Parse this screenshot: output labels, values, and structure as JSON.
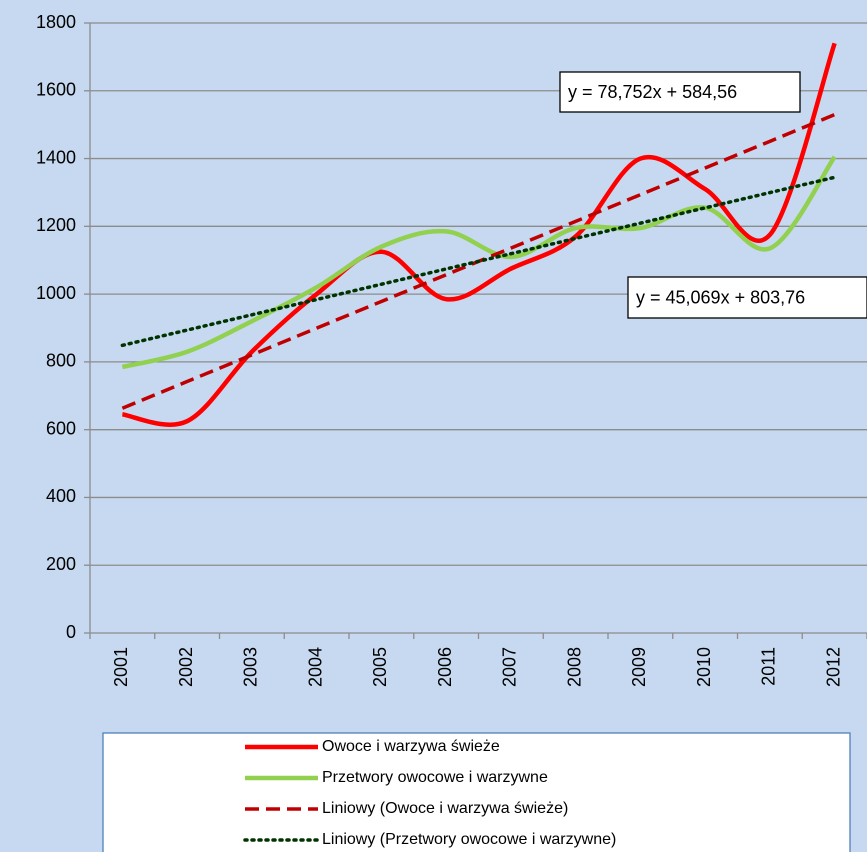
{
  "chart_data": {
    "type": "line",
    "categories": [
      "2001",
      "2002",
      "2003",
      "2004",
      "2005",
      "2006",
      "2007",
      "2008",
      "2009",
      "2010",
      "2011",
      "2012"
    ],
    "series": [
      {
        "name": "Owoce i warzywa świeże",
        "color": "#ff0000",
        "style": "solid",
        "smooth": true,
        "values": [
          645,
          625,
          830,
          1000,
          1125,
          985,
          1075,
          1170,
          1400,
          1310,
          1175,
          1740
        ]
      },
      {
        "name": "Przetwory owocowe i warzywne",
        "color": "#92d050",
        "style": "solid",
        "smooth": true,
        "values": [
          785,
          830,
          920,
          1020,
          1140,
          1185,
          1110,
          1195,
          1195,
          1255,
          1135,
          1405
        ]
      },
      {
        "name": "Liniowy (Owoce i warzywa świeże)",
        "color": "#c00000",
        "style": "dashed",
        "smooth": false,
        "values": [
          663.3,
          742.1,
          820.8,
          899.6,
          978.3,
          1057.1,
          1135.8,
          1214.6,
          1293.3,
          1372.1,
          1450.8,
          1529.6
        ]
      },
      {
        "name": "Liniowy (Przetwory owocowe i warzywne)",
        "color": "#003300",
        "style": "dotted",
        "smooth": false,
        "values": [
          848.8,
          893.9,
          939.0,
          984.0,
          1029.1,
          1074.2,
          1119.2,
          1164.3,
          1209.4,
          1254.5,
          1299.5,
          1344.6
        ]
      }
    ],
    "annotations": [
      "y = 78,752x + 584,56",
      "y = 45,069x + 803,76"
    ],
    "ylim": [
      0,
      1800
    ],
    "yticks": [
      0,
      200,
      400,
      600,
      800,
      1000,
      1200,
      1400,
      1600,
      1800
    ],
    "grid": true,
    "legend": "bottom"
  }
}
